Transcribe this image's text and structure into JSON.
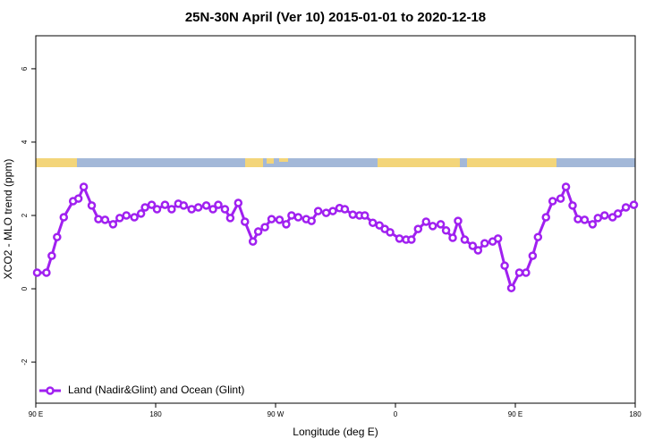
{
  "chart_data": {
    "type": "line",
    "title": "25N-30N April (Ver 10)   2015-01-01 to 2020-12-18",
    "x_label": "Longitude (deg E)",
    "y_label": "XCO2 - MLO trend (ppm)",
    "x": [
      91,
      98,
      102,
      106,
      111,
      118,
      122,
      126,
      132,
      137,
      142,
      148,
      153,
      158,
      164,
      169,
      172,
      177,
      181,
      187,
      192,
      197,
      201,
      207,
      212,
      218,
      223,
      227,
      232,
      236,
      242,
      247,
      253,
      257,
      262,
      267,
      273,
      278,
      282,
      287,
      293,
      297,
      302,
      308,
      313,
      318,
      322,
      328,
      333,
      337,
      343,
      348,
      352,
      356,
      363,
      368,
      372,
      377,
      383,
      388,
      394,
      398,
      403,
      407,
      412,
      418,
      422,
      427,
      433,
      437,
      442,
      447,
      453,
      458,
      463,
      467,
      473,
      478,
      484,
      488,
      493,
      497,
      502,
      508,
      512,
      517,
      523,
      527,
      533,
      539
    ],
    "series": [
      {
        "name": "Land (Nadir&Glint) and Ocean (Glint)",
        "color": "#a020f0",
        "values": [
          0.44,
          0.44,
          0.9,
          1.41,
          1.95,
          2.39,
          2.46,
          2.78,
          2.27,
          1.9,
          1.88,
          1.76,
          1.93,
          2.0,
          1.95,
          2.05,
          2.22,
          2.29,
          2.17,
          2.29,
          2.17,
          2.32,
          2.27,
          2.17,
          2.22,
          2.27,
          2.17,
          2.29,
          2.17,
          1.93,
          2.34,
          1.83,
          1.29,
          1.56,
          1.68,
          1.9,
          1.88,
          1.76,
          2.0,
          1.95,
          1.9,
          1.85,
          2.12,
          2.07,
          2.12,
          2.2,
          2.17,
          2.02,
          2.0,
          2.0,
          1.8,
          1.73,
          1.63,
          1.54,
          1.37,
          1.34,
          1.34,
          1.63,
          1.83,
          1.71,
          1.76,
          1.59,
          1.39,
          1.85,
          1.34,
          1.17,
          1.05,
          1.24,
          1.29,
          1.37,
          0.63,
          0.02,
          0.44,
          0.44,
          0.9,
          1.41,
          1.95,
          2.39,
          2.46,
          2.78,
          2.27,
          1.9,
          1.88,
          1.76,
          1.93,
          2.0,
          1.95,
          2.05,
          2.22,
          2.29
        ]
      }
    ],
    "xlim": [
      90,
      540
    ],
    "xticks": [
      {
        "value": 90,
        "label": "90 E"
      },
      180,
      {
        "value": 270,
        "label": "90 W"
      },
      {
        "value": 360,
        "label": "0"
      },
      {
        "value": 450,
        "label": "90 E"
      },
      {
        "value": 540,
        "label": "180"
      }
    ],
    "ylim": [
      -3.12,
      6.9
    ],
    "yticks": [
      -2,
      0,
      2,
      4,
      6
    ],
    "legend": "bottomleft"
  }
}
